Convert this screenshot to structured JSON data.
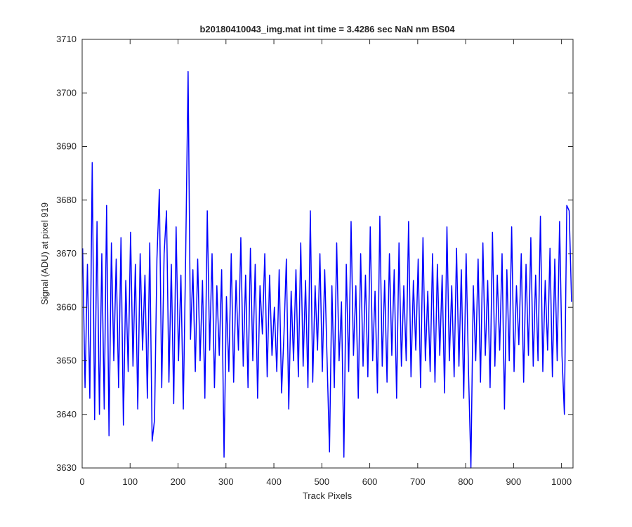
{
  "chart_data": {
    "type": "line",
    "title": "b20180410043_img.mat int time = 3.4286 sec  NaN nm BS04",
    "x_label": "Track Pixels",
    "y_label": "Signal (ADU) at pixel 919",
    "xlim": [
      0,
      1024
    ],
    "ylim": [
      3630,
      3710
    ],
    "xticks": [
      0,
      100,
      200,
      300,
      400,
      500,
      600,
      700,
      800,
      900,
      1000
    ],
    "yticks": [
      3630,
      3640,
      3650,
      3660,
      3670,
      3680,
      3690,
      3700,
      3710
    ],
    "x": [
      1,
      6,
      11,
      16,
      21,
      26,
      31,
      36,
      41,
      46,
      51,
      56,
      61,
      66,
      71,
      76,
      81,
      86,
      91,
      96,
      101,
      106,
      111,
      116,
      121,
      126,
      131,
      136,
      141,
      146,
      151,
      156,
      161,
      166,
      171,
      176,
      181,
      186,
      191,
      196,
      201,
      206,
      211,
      216,
      221,
      226,
      231,
      236,
      241,
      246,
      251,
      256,
      261,
      266,
      271,
      276,
      281,
      286,
      291,
      296,
      301,
      306,
      311,
      316,
      321,
      326,
      331,
      336,
      341,
      346,
      351,
      356,
      361,
      366,
      371,
      376,
      381,
      386,
      391,
      396,
      401,
      406,
      411,
      416,
      421,
      426,
      431,
      436,
      441,
      446,
      451,
      456,
      461,
      466,
      471,
      476,
      481,
      486,
      491,
      496,
      501,
      506,
      511,
      516,
      521,
      526,
      531,
      536,
      541,
      546,
      551,
      556,
      561,
      566,
      571,
      576,
      581,
      586,
      591,
      596,
      601,
      606,
      611,
      616,
      621,
      626,
      631,
      636,
      641,
      646,
      651,
      656,
      661,
      666,
      671,
      676,
      681,
      686,
      691,
      696,
      701,
      706,
      711,
      716,
      721,
      726,
      731,
      736,
      741,
      746,
      751,
      756,
      761,
      766,
      771,
      776,
      781,
      786,
      791,
      796,
      801,
      806,
      811,
      816,
      821,
      826,
      831,
      836,
      841,
      846,
      851,
      856,
      861,
      866,
      871,
      876,
      881,
      886,
      891,
      896,
      901,
      906,
      911,
      916,
      921,
      926,
      931,
      936,
      941,
      946,
      951,
      956,
      961,
      966,
      971,
      976,
      981,
      986,
      991,
      996,
      1001,
      1006,
      1011,
      1016,
      1021
    ],
    "series": [
      {
        "color": "#0000ff",
        "values": [
          3671,
          3645,
          3668,
          3643,
          3687,
          3639,
          3676,
          3640,
          3670,
          3641,
          3679,
          3636,
          3672,
          3650,
          3669,
          3645,
          3673,
          3638,
          3665,
          3648,
          3674,
          3649,
          3668,
          3641,
          3670,
          3652,
          3666,
          3643,
          3672,
          3635,
          3639,
          3669,
          3682,
          3645,
          3670,
          3678,
          3646,
          3668,
          3642,
          3675,
          3650,
          3666,
          3641,
          3670,
          3704,
          3654,
          3667,
          3648,
          3669,
          3650,
          3665,
          3643,
          3678,
          3652,
          3670,
          3645,
          3664,
          3651,
          3667,
          3632,
          3662,
          3648,
          3670,
          3646,
          3665,
          3652,
          3673,
          3649,
          3666,
          3645,
          3671,
          3650,
          3668,
          3643,
          3664,
          3655,
          3670,
          3647,
          3666,
          3651,
          3660,
          3648,
          3667,
          3644,
          3655,
          3669,
          3641,
          3663,
          3650,
          3667,
          3647,
          3672,
          3649,
          3665,
          3645,
          3678,
          3646,
          3664,
          3652,
          3670,
          3648,
          3667,
          3650,
          3633,
          3664,
          3645,
          3672,
          3650,
          3661,
          3632,
          3668,
          3648,
          3676,
          3651,
          3664,
          3643,
          3670,
          3649,
          3666,
          3647,
          3675,
          3650,
          3663,
          3644,
          3677,
          3649,
          3665,
          3646,
          3670,
          3651,
          3667,
          3643,
          3672,
          3649,
          3664,
          3650,
          3676,
          3647,
          3665,
          3652,
          3669,
          3645,
          3673,
          3650,
          3663,
          3648,
          3670,
          3646,
          3668,
          3651,
          3666,
          3644,
          3675,
          3650,
          3664,
          3647,
          3671,
          3649,
          3667,
          3643,
          3670,
          3648,
          3630,
          3664,
          3650,
          3669,
          3646,
          3672,
          3651,
          3665,
          3645,
          3674,
          3649,
          3666,
          3652,
          3670,
          3641,
          3667,
          3650,
          3675,
          3648,
          3664,
          3653,
          3670,
          3646,
          3668,
          3651,
          3673,
          3649,
          3666,
          3650,
          3677,
          3648,
          3665,
          3652,
          3671,
          3647,
          3669,
          3650,
          3676,
          3651,
          3640,
          3679,
          3678,
          3661
        ]
      }
    ]
  }
}
